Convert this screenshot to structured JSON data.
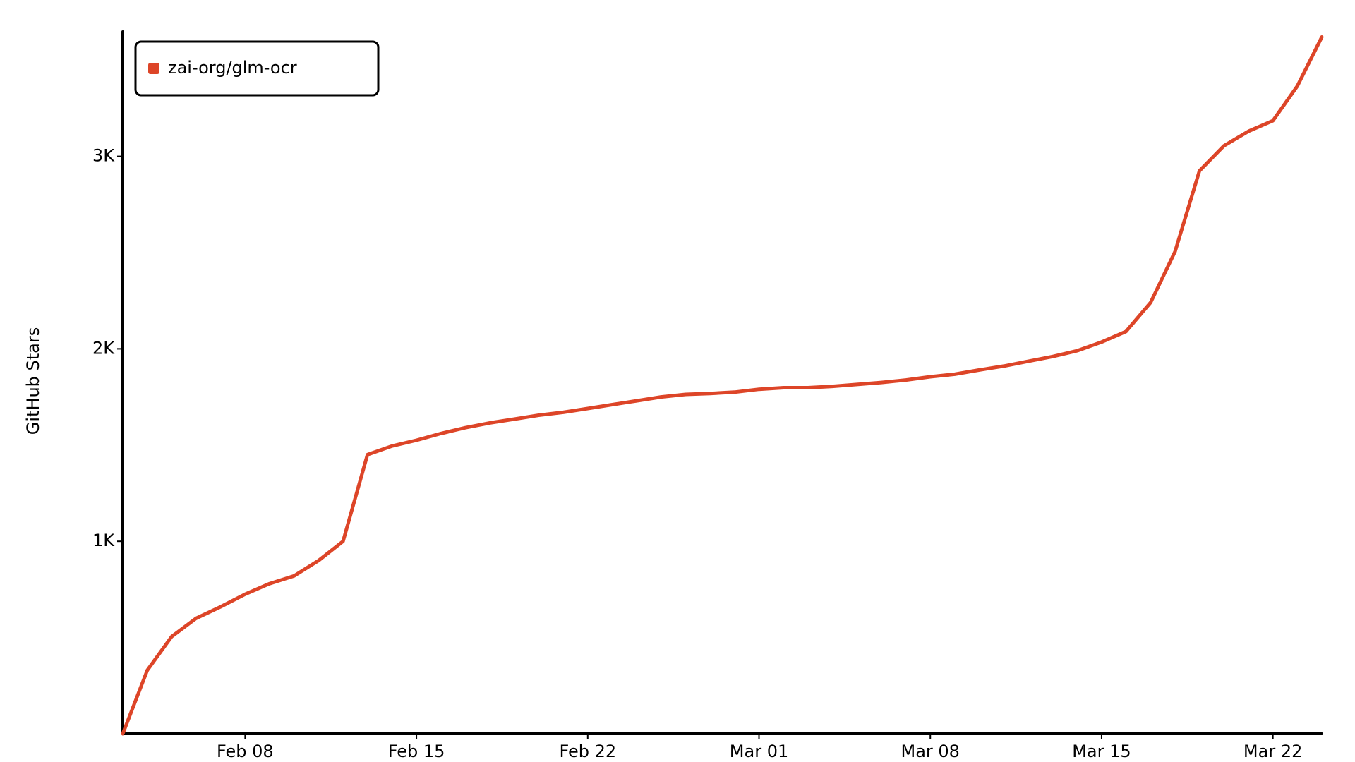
{
  "chart_data": {
    "type": "line",
    "y_label": "GitHub Stars",
    "x": [
      "Feb 03",
      "Feb 04",
      "Feb 05",
      "Feb 06",
      "Feb 07",
      "Feb 08",
      "Feb 09",
      "Feb 10",
      "Feb 11",
      "Feb 12",
      "Feb 13",
      "Feb 14",
      "Feb 15",
      "Feb 16",
      "Feb 17",
      "Feb 18",
      "Feb 19",
      "Feb 20",
      "Feb 21",
      "Feb 22",
      "Feb 23",
      "Feb 24",
      "Feb 25",
      "Feb 26",
      "Feb 27",
      "Feb 28",
      "Mar 01",
      "Mar 02",
      "Mar 03",
      "Mar 04",
      "Mar 05",
      "Mar 06",
      "Mar 07",
      "Mar 08",
      "Mar 09",
      "Mar 10",
      "Mar 11",
      "Mar 12",
      "Mar 13",
      "Mar 14",
      "Mar 15",
      "Mar 16",
      "Mar 17",
      "Mar 18",
      "Mar 19",
      "Mar 20",
      "Mar 21",
      "Mar 22",
      "Mar 23",
      "Mar 24"
    ],
    "series": [
      {
        "name": "zai-org/glm-ocr",
        "color": "#dd4528",
        "values": [
          0,
          330,
          505,
          600,
          660,
          725,
          780,
          820,
          900,
          1000,
          1450,
          1495,
          1525,
          1560,
          1590,
          1615,
          1635,
          1655,
          1670,
          1690,
          1710,
          1730,
          1750,
          1763,
          1768,
          1775,
          1790,
          1798,
          1798,
          1805,
          1815,
          1825,
          1838,
          1855,
          1868,
          1890,
          1910,
          1935,
          1960,
          1990,
          2035,
          2090,
          2240,
          2505,
          2925,
          3055,
          3130,
          3185,
          3365,
          3620
        ]
      }
    ],
    "xlim": [
      "Feb 03",
      "Mar 24"
    ],
    "xticks": [
      "Feb 08",
      "Feb 15",
      "Feb 22",
      "Mar 01",
      "Mar 08",
      "Mar 15",
      "Mar 22"
    ],
    "ylim": [
      0,
      3640
    ],
    "yticks": [
      {
        "value": 1000,
        "label": "1K"
      },
      {
        "value": 2000,
        "label": "2K"
      },
      {
        "value": 3000,
        "label": "3K"
      }
    ],
    "legend": "top-left",
    "grid": false
  }
}
